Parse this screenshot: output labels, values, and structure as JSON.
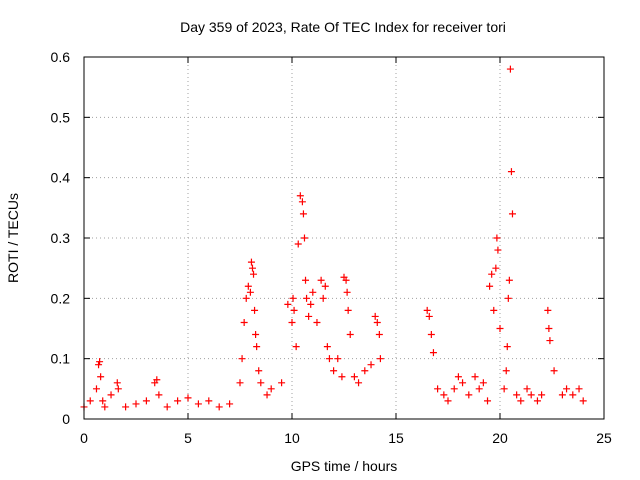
{
  "chart_data": {
    "type": "scatter",
    "title": "Day 359 of 2023, Rate Of TEC Index for receiver tori",
    "xlabel": "GPS time / hours",
    "ylabel": "ROTI / TECUs",
    "xlim": [
      0,
      25
    ],
    "ylim": [
      0,
      0.6
    ],
    "x_ticks": [
      0,
      5,
      10,
      15,
      20,
      25
    ],
    "x_tick_labels": [
      "0",
      "5",
      "10",
      "15",
      "20",
      "25"
    ],
    "y_ticks": [
      0,
      0.1,
      0.2,
      0.3,
      0.4,
      0.5,
      0.6
    ],
    "y_tick_labels": [
      "0",
      "0.1",
      "0.2",
      "0.3",
      "0.4",
      "0.5",
      "0.6"
    ],
    "grid": true,
    "marker": "plus",
    "color": "#ff0000",
    "series": [
      {
        "x": [
          0.0,
          0.3,
          0.6,
          0.7,
          0.75,
          0.8,
          0.9,
          1.0,
          1.3,
          1.6,
          1.65,
          2.0,
          2.5,
          3.0,
          3.4,
          3.5,
          3.6,
          4.0,
          4.5,
          5.0,
          5.5,
          6.0,
          6.5,
          7.0,
          7.5,
          7.6,
          7.7,
          7.8,
          7.9,
          8.0,
          8.05,
          8.1,
          8.15,
          8.2,
          8.25,
          8.3,
          8.4,
          8.5,
          8.8,
          9.0,
          9.5,
          9.8,
          10.0,
          10.05,
          10.1,
          10.2,
          10.3,
          10.4,
          10.5,
          10.55,
          10.6,
          10.65,
          10.7,
          10.8,
          10.9,
          11.0,
          11.2,
          11.4,
          11.5,
          11.6,
          11.7,
          11.8,
          12.0,
          12.2,
          12.4,
          12.5,
          12.6,
          12.65,
          12.7,
          12.8,
          13.0,
          13.2,
          13.5,
          13.8,
          14.0,
          14.1,
          14.2,
          14.25,
          16.5,
          16.6,
          16.7,
          16.8,
          17.0,
          17.3,
          17.5,
          17.8,
          18.0,
          18.2,
          18.5,
          18.8,
          19.0,
          19.2,
          19.4,
          19.5,
          19.6,
          19.7,
          19.8,
          19.85,
          19.9,
          20.0,
          20.2,
          20.3,
          20.35,
          20.4,
          20.45,
          20.5,
          20.55,
          20.6,
          20.8,
          21.0,
          21.3,
          21.5,
          21.8,
          22.0,
          22.3,
          22.35,
          22.4,
          22.6,
          23.0,
          23.2,
          23.5,
          23.8,
          24.0
        ],
        "y": [
          0.02,
          0.03,
          0.05,
          0.09,
          0.095,
          0.07,
          0.03,
          0.02,
          0.04,
          0.06,
          0.05,
          0.02,
          0.025,
          0.03,
          0.06,
          0.065,
          0.04,
          0.02,
          0.03,
          0.035,
          0.025,
          0.03,
          0.02,
          0.025,
          0.06,
          0.1,
          0.16,
          0.2,
          0.22,
          0.21,
          0.26,
          0.25,
          0.24,
          0.18,
          0.14,
          0.12,
          0.08,
          0.06,
          0.04,
          0.05,
          0.06,
          0.19,
          0.16,
          0.2,
          0.18,
          0.12,
          0.29,
          0.37,
          0.36,
          0.34,
          0.3,
          0.23,
          0.2,
          0.17,
          0.19,
          0.21,
          0.16,
          0.23,
          0.2,
          0.22,
          0.12,
          0.1,
          0.08,
          0.1,
          0.07,
          0.235,
          0.23,
          0.21,
          0.18,
          0.14,
          0.07,
          0.06,
          0.08,
          0.09,
          0.17,
          0.16,
          0.14,
          0.1,
          0.18,
          0.17,
          0.14,
          0.11,
          0.05,
          0.04,
          0.03,
          0.05,
          0.07,
          0.06,
          0.04,
          0.07,
          0.05,
          0.06,
          0.03,
          0.22,
          0.24,
          0.18,
          0.25,
          0.3,
          0.28,
          0.15,
          0.05,
          0.08,
          0.12,
          0.2,
          0.23,
          0.58,
          0.41,
          0.34,
          0.04,
          0.03,
          0.05,
          0.04,
          0.03,
          0.04,
          0.18,
          0.15,
          0.13,
          0.08,
          0.04,
          0.05,
          0.04,
          0.05,
          0.03
        ]
      }
    ]
  }
}
